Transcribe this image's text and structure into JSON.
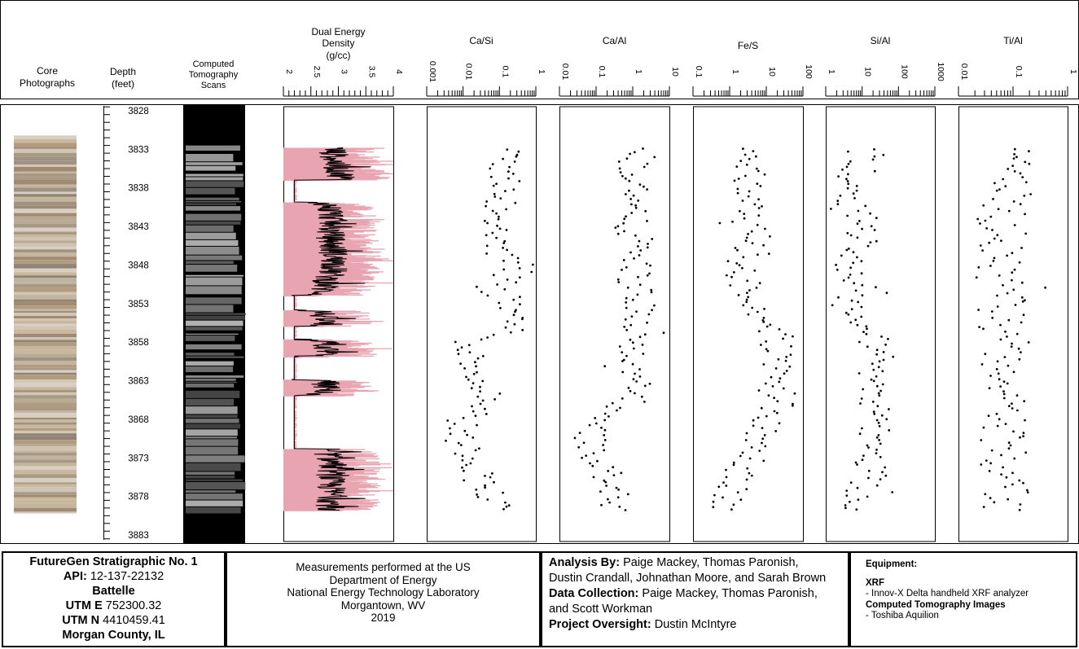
{
  "headers": {
    "core": [
      "Core",
      "Photographs"
    ],
    "depth": [
      "Depth",
      "(feet)"
    ],
    "ct": [
      "Computed",
      "Tomography",
      "Scans"
    ]
  },
  "depth_ticks": [
    "3828",
    "3833",
    "3838",
    "3843",
    "3848",
    "3853",
    "3858",
    "3863",
    "3868",
    "3873",
    "3878",
    "3883"
  ],
  "colors": {
    "density_fill": "#e8a4b0",
    "trace": "#000000",
    "ct_background": "#000000",
    "ct_bands": "#8c8c8c"
  },
  "tracks": [
    {
      "id": "density",
      "title_lines": [
        "Dual Energy",
        "Density",
        "(g/cc)"
      ],
      "tick_labels": [
        "2",
        "2.5",
        "3",
        "3.5",
        "4"
      ]
    },
    {
      "id": "ca_si",
      "title_lines": [
        "Ca/Si"
      ],
      "tick_labels": [
        "0.001",
        "0.01",
        "0.1",
        "1"
      ]
    },
    {
      "id": "ca_al",
      "title_lines": [
        "Ca/Al"
      ],
      "tick_labels": [
        "0.01",
        "0.1",
        "1",
        "10"
      ]
    },
    {
      "id": "fe_s",
      "title_lines": [
        "Fe/S"
      ],
      "tick_labels": [
        "0.1",
        "1",
        "10",
        "100"
      ]
    },
    {
      "id": "si_al",
      "title_lines": [
        "Si/Al"
      ],
      "tick_labels": [
        "1",
        "10",
        "100",
        "1000"
      ]
    },
    {
      "id": "ti_al",
      "title_lines": [
        "Ti/Al"
      ],
      "tick_labels": [
        "0.01",
        "0.1",
        "1"
      ]
    }
  ],
  "chart_data": {
    "type": "scatter",
    "y_label": "Depth (feet)",
    "y_range": [
      3828,
      3883
    ],
    "series": [
      {
        "name": "Dual Energy Density (g/cc)",
        "x_range": [
          2,
          4
        ],
        "x_scale": "linear",
        "style": "line",
        "profile": [
          [
            3832.8,
            2.9
          ],
          [
            3835,
            2.95
          ],
          [
            3836.9,
            3.1
          ],
          [
            3837,
            2.2
          ],
          [
            3839.8,
            2.2
          ],
          [
            3840,
            2.8
          ],
          [
            3842,
            2.9
          ],
          [
            3844,
            2.85
          ],
          [
            3846,
            2.9
          ],
          [
            3848,
            2.95
          ],
          [
            3850,
            2.8
          ],
          [
            3851.8,
            2.7
          ],
          [
            3852,
            2.2
          ],
          [
            3853.8,
            2.2
          ],
          [
            3854,
            2.7
          ],
          [
            3855.5,
            2.75
          ],
          [
            3856,
            2.2
          ],
          [
            3857.5,
            2.2
          ],
          [
            3858,
            2.75
          ],
          [
            3859.5,
            2.8
          ],
          [
            3860,
            2.2
          ],
          [
            3862.8,
            2.2
          ],
          [
            3863,
            2.75
          ],
          [
            3864.5,
            2.8
          ],
          [
            3865,
            2.2
          ],
          [
            3871.8,
            2.2
          ],
          [
            3872,
            2.8
          ],
          [
            3874,
            2.9
          ],
          [
            3876,
            2.85
          ],
          [
            3878,
            2.9
          ],
          [
            3879.5,
            2.85
          ]
        ]
      },
      {
        "name": "Ca/Si",
        "x_range": [
          0.001,
          1
        ],
        "x_scale": "log",
        "profile": [
          [
            3833,
            0.12
          ],
          [
            3836,
            0.13
          ],
          [
            3838,
            0.18
          ],
          [
            3840,
            0.07
          ],
          [
            3843,
            0.05
          ],
          [
            3845,
            0.1
          ],
          [
            3848,
            0.14
          ],
          [
            3850,
            0.16
          ],
          [
            3851,
            0.05
          ],
          [
            3854,
            0.25
          ],
          [
            3856,
            0.22
          ],
          [
            3858,
            0.012
          ],
          [
            3862,
            0.02
          ],
          [
            3865,
            0.05
          ],
          [
            3868,
            0.01
          ],
          [
            3871,
            0.008
          ],
          [
            3873,
            0.02
          ],
          [
            3876,
            0.03
          ],
          [
            3878,
            0.06
          ],
          [
            3880,
            0.08
          ]
        ]
      },
      {
        "name": "Ca/Al",
        "x_range": [
          0.01,
          10
        ],
        "x_scale": "log",
        "profile": [
          [
            3833,
            1.2
          ],
          [
            3836,
            1.0
          ],
          [
            3838,
            1.5
          ],
          [
            3840,
            0.8
          ],
          [
            3843,
            0.9
          ],
          [
            3845,
            1.3
          ],
          [
            3848,
            1.4
          ],
          [
            3850,
            1.0
          ],
          [
            3853,
            1.5
          ],
          [
            3856,
            1.3
          ],
          [
            3858,
            1.0
          ],
          [
            3861,
            0.4
          ],
          [
            3864,
            1.5
          ],
          [
            3866,
            0.2
          ],
          [
            3869,
            0.07
          ],
          [
            3872,
            0.06
          ],
          [
            3875,
            0.2
          ],
          [
            3878,
            0.3
          ],
          [
            3880,
            0.4
          ]
        ]
      },
      {
        "name": "Fe/S",
        "x_range": [
          0.1,
          100
        ],
        "x_scale": "log",
        "profile": [
          [
            3833,
            2
          ],
          [
            3835,
            4
          ],
          [
            3838,
            3
          ],
          [
            3840,
            5
          ],
          [
            3843,
            4
          ],
          [
            3845,
            6
          ],
          [
            3847,
            2.5
          ],
          [
            3849,
            2
          ],
          [
            3851,
            3
          ],
          [
            3853,
            2
          ],
          [
            3855,
            6
          ],
          [
            3857,
            20
          ],
          [
            3859,
            18
          ],
          [
            3862,
            15
          ],
          [
            3864,
            30
          ],
          [
            3866,
            20
          ],
          [
            3868,
            10
          ],
          [
            3870,
            6
          ],
          [
            3872,
            4
          ],
          [
            3874,
            2.5
          ],
          [
            3876,
            1.5
          ],
          [
            3878,
            1
          ],
          [
            3880,
            0.8
          ]
        ]
      },
      {
        "name": "Si/Al",
        "x_range": [
          1,
          1000
        ],
        "x_scale": "log",
        "profile": [
          [
            3833,
            8
          ],
          [
            3836,
            8
          ],
          [
            3838,
            5
          ],
          [
            3840,
            6
          ],
          [
            3843,
            12
          ],
          [
            3845,
            10
          ],
          [
            3847,
            5
          ],
          [
            3849,
            5
          ],
          [
            3851,
            10
          ],
          [
            3853,
            3
          ],
          [
            3855,
            8
          ],
          [
            3857,
            15
          ],
          [
            3859,
            30
          ],
          [
            3861,
            25
          ],
          [
            3863,
            20
          ],
          [
            3866,
            25
          ],
          [
            3868,
            30
          ],
          [
            3870,
            20
          ],
          [
            3873,
            15
          ],
          [
            3875,
            20
          ],
          [
            3877,
            10
          ],
          [
            3879,
            8
          ],
          [
            3880,
            10
          ]
        ]
      },
      {
        "name": "Ti/Al",
        "x_range": [
          0.01,
          1
        ],
        "x_scale": "log",
        "profile": [
          [
            3833,
            0.08
          ],
          [
            3836,
            0.09
          ],
          [
            3838,
            0.1
          ],
          [
            3840,
            0.06
          ],
          [
            3843,
            0.06
          ],
          [
            3845,
            0.07
          ],
          [
            3847,
            0.055
          ],
          [
            3849,
            0.05
          ],
          [
            3851,
            0.06
          ],
          [
            3853,
            0.07
          ],
          [
            3855,
            0.05
          ],
          [
            3857,
            0.07
          ],
          [
            3859,
            0.08
          ],
          [
            3862,
            0.09
          ],
          [
            3864,
            0.07
          ],
          [
            3866,
            0.06
          ],
          [
            3869,
            0.08
          ],
          [
            3871,
            0.05
          ],
          [
            3873,
            0.05
          ],
          [
            3875,
            0.07
          ],
          [
            3877,
            0.08
          ],
          [
            3880,
            0.08
          ]
        ]
      }
    ]
  },
  "footer": {
    "well": {
      "name": "FutureGen Stratigraphic No. 1",
      "api_label": "API:",
      "api_value": "12-137-22132",
      "operator": "Battelle",
      "utme_label": "UTM E",
      "utme_value": "752300.32",
      "utmn_label": "UTM N",
      "utmn_value": "4410459.41",
      "county": "Morgan County, IL"
    },
    "measurements": [
      "Measurements performed at the US",
      "Department of Energy",
      "National Energy Technology Laboratory",
      "Morgantown, WV",
      "2019"
    ],
    "credits": {
      "analysis_label": "Analysis By:",
      "analysis_value": "Paige Mackey, Thomas Paronish,",
      "analysis_value_2": "Dustin Crandall, Johnathan Moore, and Sarah Brown",
      "collection_label": "Data Collection:",
      "collection_value": "Paige Mackey, Thomas Paronish,",
      "collection_value_2": "and Scott Workman",
      "oversight_label": "Project Oversight:",
      "oversight_value": "Dustin McIntyre"
    },
    "equipment": {
      "title": "Equipment:",
      "xrf_head": "XRF",
      "xrf_item": "- Innov-X Delta handheld XRF analyzer",
      "ct_head": "Computed Tomography Images",
      "ct_item": "- Toshiba Aquilion"
    }
  }
}
